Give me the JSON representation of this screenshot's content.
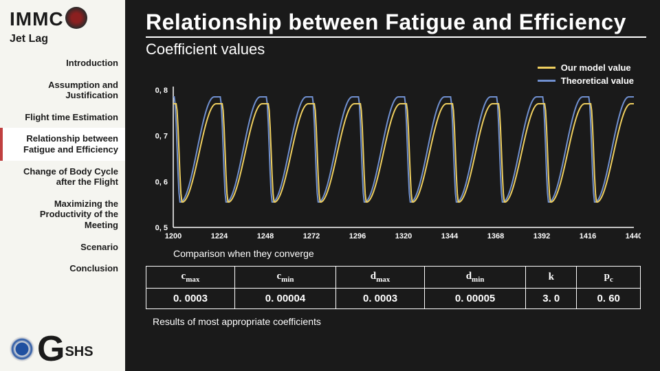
{
  "brand": "IMMC",
  "subtitle": "Jet Lag",
  "nav": [
    "Introduction",
    "Assumption and Justification",
    "Flight time Estimation",
    "Relationship between Fatigue and Efficiency",
    "Change of Body Cycle after the Flight",
    "Maximizing the Productivity of the Meeting",
    "Scenario",
    "Conclusion"
  ],
  "nav_active_index": 3,
  "footer": {
    "g": "G",
    "shs": "SHS"
  },
  "title": "Relationship between Fatigue and Efficiency",
  "chart_subtitle": "Coefficient values",
  "legend": [
    {
      "label": "Our model value",
      "color": "#f0d060"
    },
    {
      "label": "Theoretical value",
      "color": "#7090d0"
    }
  ],
  "chart": {
    "type": "line",
    "xlim": [
      1200,
      1440
    ],
    "ylim": [
      0.5,
      0.8
    ],
    "yticks": [
      "0, 5",
      "0, 6",
      "0, 7",
      "0, 8"
    ],
    "xticks": [
      "1200",
      "1224",
      "1248",
      "1272",
      "1296",
      "1320",
      "1344",
      "1368",
      "1392",
      "1416",
      "1440"
    ],
    "background": "#1a1a1a",
    "axis_color": "#ffffff",
    "tick_fontsize": 11,
    "tick_color": "#ffffff",
    "series": [
      {
        "color": "#7090d0",
        "width": 2,
        "period": 24,
        "ymin": 0.555,
        "ymax": 0.785,
        "phase": 0
      },
      {
        "color": "#f0d060",
        "width": 2,
        "period": 24,
        "ymin": 0.555,
        "ymax": 0.77,
        "phase": -1
      }
    ]
  },
  "caption1": "Comparison when they converge",
  "coef_headers": [
    {
      "base": "c",
      "sub": "max"
    },
    {
      "base": "c",
      "sub": "min"
    },
    {
      "base": "d",
      "sub": "max"
    },
    {
      "base": "d",
      "sub": "min"
    },
    {
      "base": "k",
      "sub": ""
    },
    {
      "base": "p",
      "sub": "c"
    }
  ],
  "coef_values": [
    "0. 0003",
    "0. 00004",
    "0. 0003",
    "0. 00005",
    "3. 0",
    "0. 60"
  ],
  "caption2": "Results of most appropriate coefficients"
}
